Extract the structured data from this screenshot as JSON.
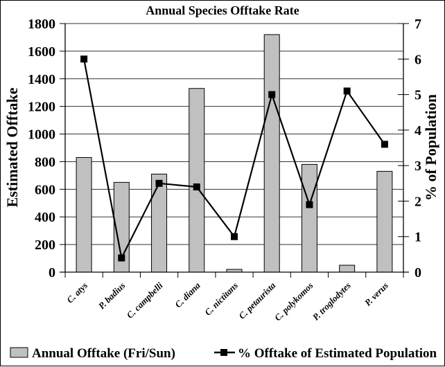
{
  "chart_data": {
    "type": "bar+line",
    "title": "Annual Species Offtake Rate",
    "categories": [
      "C. atys",
      "P. badius",
      "C. campbelli",
      "C. diana",
      "C. nictitans",
      "C. petaurista",
      "C. polykomos",
      "P. troglodytes",
      "P. verus"
    ],
    "series": [
      {
        "name": "Annual Offtake (Fri/Sun)",
        "type": "bar",
        "axis": "left",
        "color": "#c0c0c0",
        "values": [
          830,
          650,
          710,
          1330,
          20,
          1720,
          780,
          50,
          730
        ]
      },
      {
        "name": "% Offtake of Estimated Population",
        "type": "line",
        "axis": "right",
        "color": "#000000",
        "marker": "square",
        "values": [
          6.0,
          0.4,
          2.5,
          2.4,
          1.0,
          5.0,
          1.9,
          5.1,
          3.6
        ]
      }
    ],
    "ylabel": "Estimated Offtake",
    "ylim": [
      0,
      1800
    ],
    "yticks": [
      "0",
      "200",
      "400",
      "600",
      "800",
      "1000",
      "1200",
      "1400",
      "1600",
      "1800"
    ],
    "y2label": "%  of Population",
    "y2lim": [
      0,
      7
    ],
    "y2ticks": [
      "0",
      "1",
      "2",
      "3",
      "4",
      "5",
      "6",
      "7"
    ],
    "grid": true,
    "legend_position": "bottom"
  }
}
